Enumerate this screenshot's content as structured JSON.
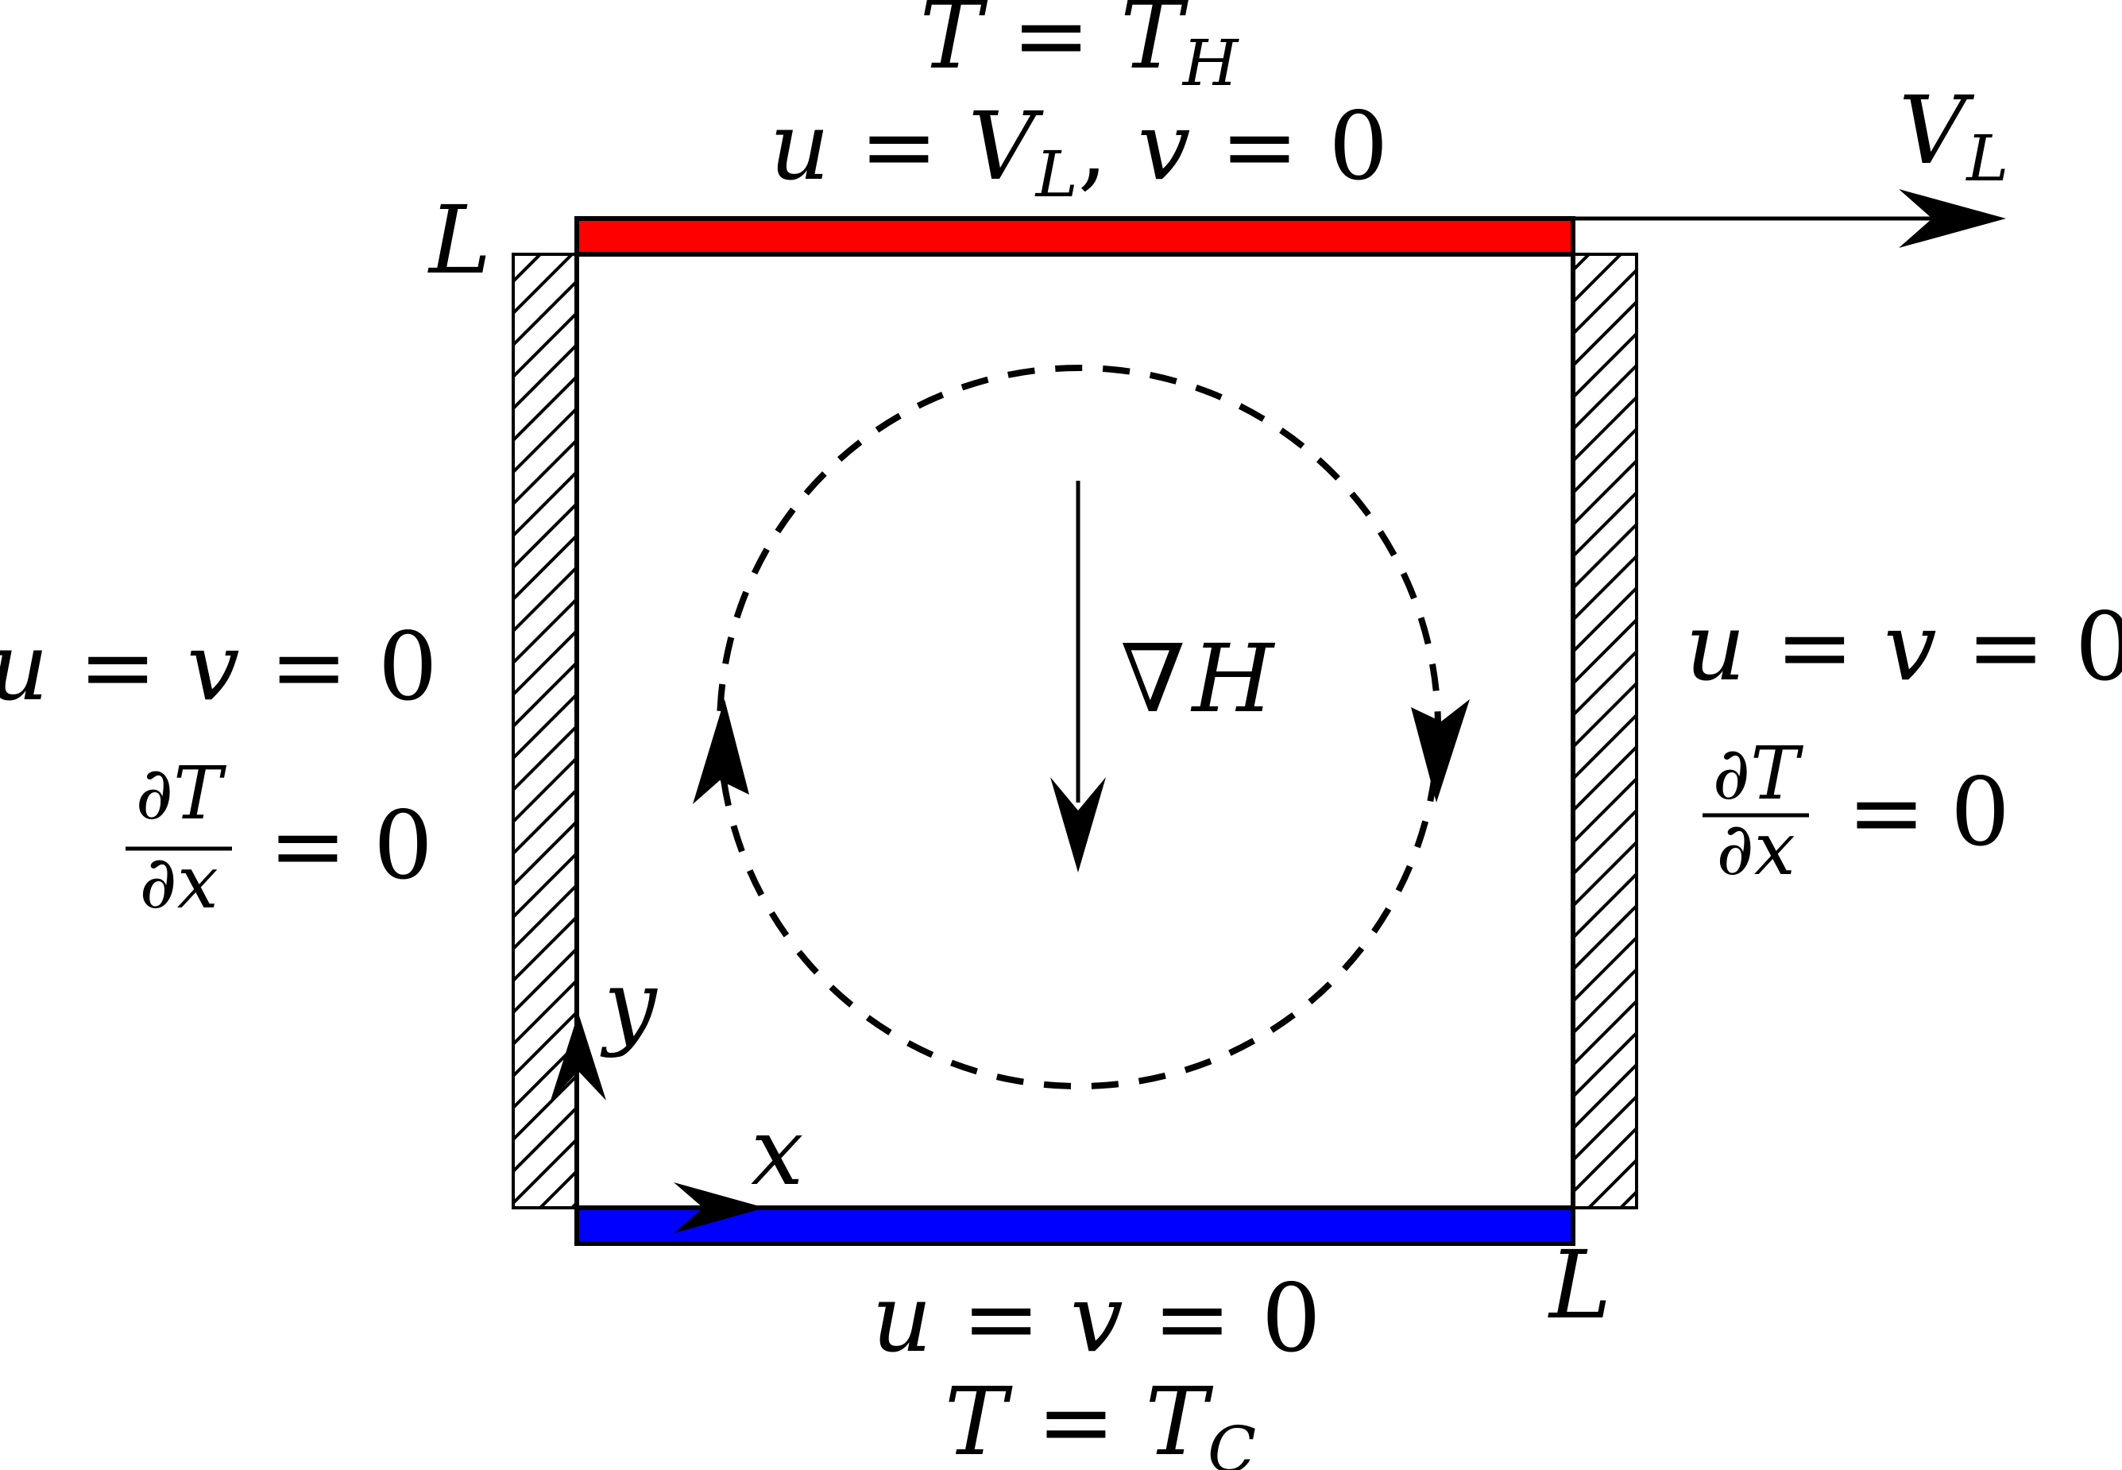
{
  "colors": {
    "hot_wall": "#ff0000",
    "cold_wall": "#0000ff",
    "ink": "#000000"
  },
  "icons": {
    "lid_velocity_arrow": "arrow-right-icon",
    "field_gradient_arrow": "arrow-down-icon",
    "x_axis_arrow": "arrow-right-icon",
    "y_axis_arrow": "arrow-up-icon"
  },
  "labels": {
    "top": {
      "temperature": {
        "lhs": "T",
        "eq": " = ",
        "rhs": "T",
        "sub": "H"
      },
      "velocity": {
        "u": "u",
        "eq1": " = ",
        "V": "V",
        "V_sub": "L",
        "comma": ", ",
        "v": "v",
        "eq2": " = ",
        "zero": "0"
      }
    },
    "lid_velocity": {
      "V": "V",
      "sub": "L"
    },
    "corner_top_left": "L",
    "corner_bottom_right": "L",
    "left": {
      "velocity": {
        "u": "u",
        "eq1": " = ",
        "v": "v",
        "eq2": " = ",
        "zero": "0"
      },
      "flux": {
        "num": "∂T",
        "den": "∂x",
        "eq": "=",
        "zero": "0"
      }
    },
    "right": {
      "velocity": {
        "u": "u",
        "eq1": " = ",
        "v": "v",
        "eq2": " = ",
        "zero": "0"
      },
      "flux": {
        "num": "∂T",
        "den": "∂x",
        "eq": "=",
        "zero": "0"
      }
    },
    "bottom": {
      "velocity": {
        "u": "u",
        "eq1": " = ",
        "v": "v",
        "eq2": " = ",
        "zero": "0"
      },
      "temperature": {
        "lhs": "T",
        "eq": " = ",
        "rhs": "T",
        "sub": "C"
      }
    },
    "gradient": {
      "nabla": "∇",
      "H": "H"
    },
    "axis_x": "x",
    "axis_y": "y"
  }
}
